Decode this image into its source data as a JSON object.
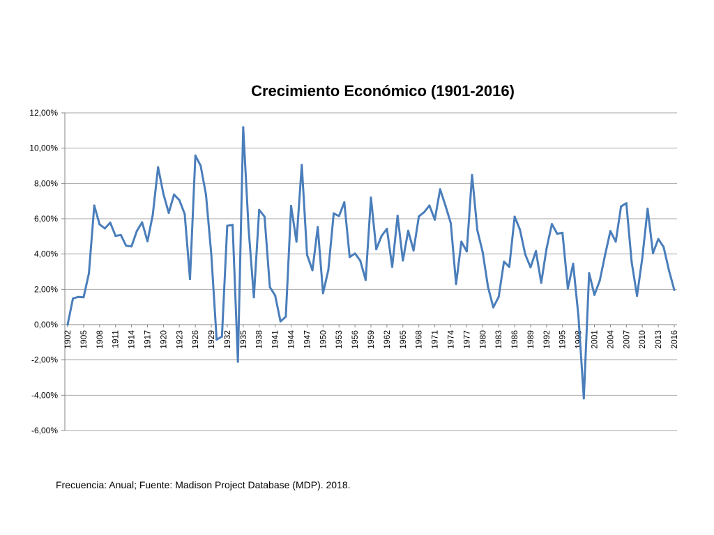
{
  "footer": "Frecuencia: Anual; Fuente: Madison Project Database (MDP). 2018.",
  "chart_data": {
    "type": "line",
    "title": "Crecimiento Económico (1901-2016)",
    "xlabel": "",
    "ylabel": "",
    "ylim": [
      -0.06,
      0.12
    ],
    "yticks": [
      -0.06,
      -0.04,
      -0.02,
      0.0,
      0.02,
      0.04,
      0.06,
      0.08,
      0.1,
      0.12
    ],
    "ytick_labels": [
      "-6,00%",
      "-4,00%",
      "-2,00%",
      "0,00%",
      "2,00%",
      "4,00%",
      "6,00%",
      "8,00%",
      "10,00%",
      "12,00%"
    ],
    "xtick_labels": [
      "1902",
      "1905",
      "1908",
      "1911",
      "1914",
      "1917",
      "1920",
      "1923",
      "1926",
      "1929",
      "1932",
      "1935",
      "1938",
      "1941",
      "1944",
      "1947",
      "1950",
      "1953",
      "1956",
      "1959",
      "1962",
      "1965",
      "1968",
      "1971",
      "1974",
      "1977",
      "1980",
      "1983",
      "1986",
      "1989",
      "1992",
      "1995",
      "1998",
      "2001",
      "2004",
      "2007",
      "2010",
      "2013",
      "2016"
    ],
    "grid": true,
    "line_color": "#4a7ebb",
    "series": [
      {
        "x": [
          1902,
          1903,
          1904,
          1905,
          1906,
          1907,
          1908,
          1909,
          1910,
          1911,
          1912,
          1913,
          1914,
          1915,
          1916,
          1917,
          1918,
          1919,
          1920,
          1921,
          1922,
          1923,
          1924,
          1925,
          1926,
          1927,
          1928,
          1929,
          1930,
          1931,
          1932,
          1933,
          1934,
          1935,
          1936,
          1937,
          1938,
          1939,
          1940,
          1941,
          1942,
          1943,
          1944,
          1945,
          1946,
          1947,
          1948,
          1949,
          1950,
          1951,
          1952,
          1953,
          1954,
          1955,
          1956,
          1957,
          1958,
          1959,
          1960,
          1961,
          1962,
          1963,
          1964,
          1965,
          1966,
          1967,
          1968,
          1969,
          1970,
          1971,
          1972,
          1973,
          1974,
          1975,
          1976,
          1977,
          1978,
          1979,
          1980,
          1981,
          1982,
          1983,
          1984,
          1985,
          1986,
          1987,
          1988,
          1989,
          1990,
          1991,
          1992,
          1993,
          1994,
          1995,
          1996,
          1997,
          1998,
          1999,
          2000,
          2001,
          2002,
          2003,
          2004,
          2005,
          2006,
          2007,
          2008,
          2009,
          2010,
          2011,
          2012,
          2013,
          2014,
          2015,
          2016
        ],
        "values": [
          0.0,
          0.0148,
          0.0157,
          0.0155,
          0.029,
          0.0675,
          0.0568,
          0.0545,
          0.0578,
          0.0503,
          0.0508,
          0.0447,
          0.0443,
          0.053,
          0.058,
          0.0472,
          0.0622,
          0.0892,
          0.074,
          0.0633,
          0.0737,
          0.0705,
          0.0627,
          0.0258,
          0.0958,
          0.09,
          0.0737,
          0.0395,
          -0.0085,
          -0.0068,
          0.056,
          0.0565,
          -0.021,
          0.1118,
          0.0545,
          0.0155,
          0.065,
          0.0612,
          0.0213,
          0.0165,
          0.0018,
          0.0045,
          0.0673,
          0.047,
          0.0905,
          0.0395,
          0.0308,
          0.0553,
          0.0178,
          0.031,
          0.063,
          0.0615,
          0.0693,
          0.0383,
          0.0403,
          0.0362,
          0.0253,
          0.072,
          0.0427,
          0.0503,
          0.0543,
          0.0327,
          0.0617,
          0.0363,
          0.0532,
          0.042,
          0.0613,
          0.0637,
          0.0675,
          0.0595,
          0.0767,
          0.0675,
          0.0575,
          0.023,
          0.047,
          0.0415,
          0.0848,
          0.0535,
          0.041,
          0.0213,
          0.0098,
          0.0157,
          0.0357,
          0.0327,
          0.0612,
          0.0538,
          0.0398,
          0.0325,
          0.0417,
          0.0237,
          0.043,
          0.057,
          0.0515,
          0.052,
          0.0205,
          0.0345,
          0.0047,
          -0.0418,
          0.0292,
          0.0168,
          0.025,
          0.0395,
          0.053,
          0.047,
          0.067,
          0.0688,
          0.0355,
          0.0163,
          0.0378,
          0.0657,
          0.0405,
          0.0485,
          0.044,
          0.0308,
          0.0197
        ]
      }
    ]
  }
}
